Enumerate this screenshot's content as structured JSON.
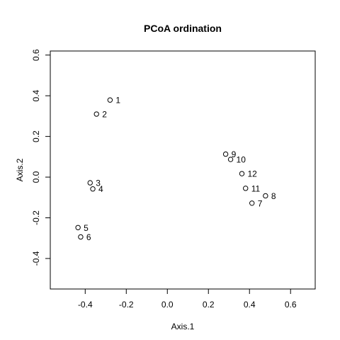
{
  "chart_data": {
    "type": "scatter",
    "title": "PCoA ordination",
    "xlabel": "Axis.1",
    "ylabel": "Axis.2",
    "xlim": [
      -0.57,
      0.72
    ],
    "ylim": [
      -0.55,
      0.62
    ],
    "x_ticks": [
      -0.4,
      -0.2,
      0.0,
      0.2,
      0.4,
      0.6
    ],
    "x_tick_labels": [
      "-0.4",
      "-0.2",
      "0.0",
      "0.2",
      "0.4",
      "0.6"
    ],
    "y_ticks": [
      -0.4,
      -0.2,
      0.0,
      0.2,
      0.4,
      0.6
    ],
    "y_tick_labels": [
      "-0.4",
      "-0.2",
      "0.0",
      "0.2",
      "0.4",
      "0.6"
    ],
    "grid": false,
    "points": [
      {
        "label": "1",
        "x": -0.279,
        "y": 0.379
      },
      {
        "label": "2",
        "x": -0.345,
        "y": 0.31
      },
      {
        "label": "3",
        "x": -0.376,
        "y": -0.028
      },
      {
        "label": "4",
        "x": -0.363,
        "y": -0.058
      },
      {
        "label": "5",
        "x": -0.435,
        "y": -0.248
      },
      {
        "label": "6",
        "x": -0.422,
        "y": -0.294
      },
      {
        "label": "7",
        "x": 0.412,
        "y": -0.128
      },
      {
        "label": "8",
        "x": 0.478,
        "y": -0.092
      },
      {
        "label": "9",
        "x": 0.284,
        "y": 0.113
      },
      {
        "label": "10",
        "x": 0.308,
        "y": 0.087
      },
      {
        "label": "11",
        "x": 0.381,
        "y": -0.055
      },
      {
        "label": "12",
        "x": 0.363,
        "y": 0.017
      }
    ]
  }
}
